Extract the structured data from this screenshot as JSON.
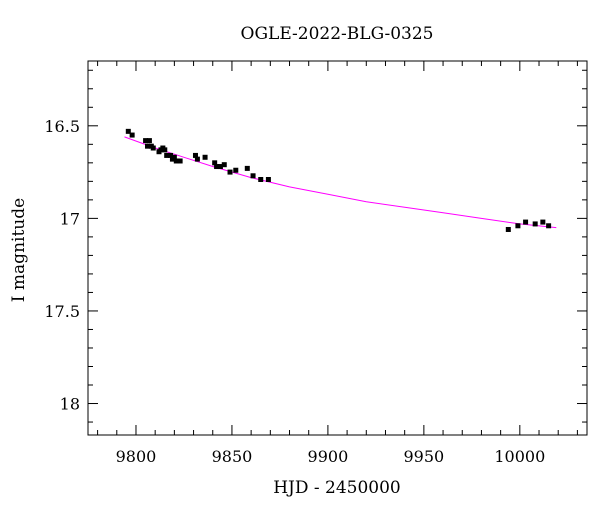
{
  "chart_data": {
    "type": "scatter",
    "title": "OGLE-2022-BLG-0325",
    "xlabel": "HJD - 2450000",
    "ylabel": "I magnitude",
    "xlim": [
      9775,
      10035
    ],
    "ylim": [
      18.17,
      16.15
    ],
    "y_inverted": true,
    "grid": false,
    "x_ticks": [
      "9800",
      "9850",
      "9900",
      "9950",
      "10000"
    ],
    "x_tick_values": [
      9800,
      9850,
      9900,
      9950,
      10000
    ],
    "y_ticks": [
      "16.5",
      "17",
      "17.5",
      "18"
    ],
    "y_tick_values": [
      16.5,
      17,
      17.5,
      18
    ],
    "series": [
      {
        "kind": "points",
        "color": "#000000",
        "x": [
          9796,
          9798,
          9805,
          9806,
          9807,
          9808,
          9809,
          9812,
          9813,
          9814,
          9815,
          9816,
          9818,
          9819,
          9820,
          9821,
          9823,
          9831,
          9832,
          9836,
          9841,
          9842,
          9844,
          9846,
          9849,
          9852,
          9858,
          9861,
          9865,
          9869,
          9994,
          9999,
          10003,
          10008,
          10012,
          10015
        ],
        "y": [
          16.53,
          16.55,
          16.58,
          16.61,
          16.58,
          16.61,
          16.62,
          16.64,
          16.63,
          16.62,
          16.63,
          16.66,
          16.66,
          16.68,
          16.67,
          16.69,
          16.69,
          16.66,
          16.68,
          16.67,
          16.7,
          16.72,
          16.72,
          16.71,
          16.75,
          16.74,
          16.73,
          16.77,
          16.79,
          16.79,
          17.06,
          17.04,
          17.02,
          17.03,
          17.02,
          17.04
        ],
        "err": [
          0.006,
          0.006,
          0.007,
          0.007,
          0.009,
          0.007,
          0.007,
          0.009,
          0.007,
          0.007,
          0.007,
          0.007,
          0.007,
          0.007,
          0.007,
          0.007,
          0.007,
          0.007,
          0.007,
          0.007,
          0.007,
          0.007,
          0.007,
          0.007,
          0.007,
          0.007,
          0.009,
          0.007,
          0.007,
          0.007,
          0.007,
          0.009,
          0.007,
          0.007,
          0.007,
          0.007
        ]
      },
      {
        "kind": "line",
        "color": "#ff00ff",
        "x": [
          9794,
          9810,
          9825,
          9840,
          9860,
          9880,
          9900,
          9920,
          9940,
          9960,
          9980,
          10000,
          10019
        ],
        "y": [
          16.56,
          16.62,
          16.67,
          16.72,
          16.78,
          16.83,
          16.87,
          16.91,
          16.94,
          16.97,
          17.0,
          17.03,
          17.05
        ]
      }
    ]
  }
}
